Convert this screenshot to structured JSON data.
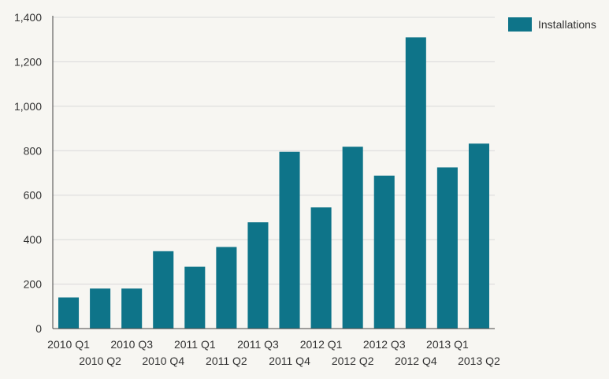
{
  "chart_data": {
    "type": "bar",
    "categories": [
      "2010 Q1",
      "2010 Q2",
      "2010 Q3",
      "2010 Q4",
      "2011 Q1",
      "2011 Q2",
      "2011 Q3",
      "2011 Q4",
      "2012 Q1",
      "2012 Q2",
      "2012 Q3",
      "2012 Q4",
      "2013 Q1",
      "2013 Q2"
    ],
    "series": [
      {
        "name": "Installations",
        "color": "#0e7489",
        "values": [
          140,
          180,
          180,
          348,
          278,
          367,
          478,
          795,
          545,
          818,
          688,
          1310,
          725,
          832
        ]
      }
    ],
    "ylim": [
      0,
      1400
    ],
    "yticks": [
      0,
      200,
      400,
      600,
      800,
      1000,
      1200,
      1400
    ],
    "ytick_labels": [
      "0",
      "200",
      "400",
      "600",
      "800",
      "1,000",
      "1,200",
      "1,400"
    ],
    "grid": true,
    "legend_position": "top-right"
  }
}
